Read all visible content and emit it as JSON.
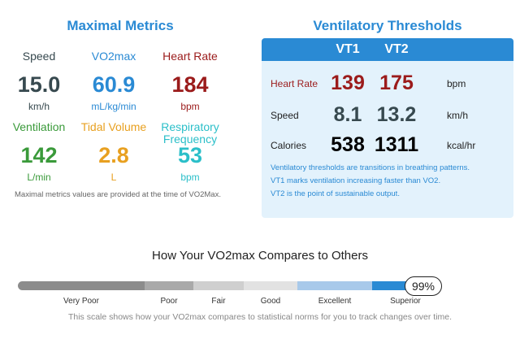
{
  "maximal_metrics": {
    "title": "Maximal Metrics",
    "metrics": [
      {
        "label": "Speed",
        "value": "15.0",
        "unit": "km/h"
      },
      {
        "label": "VO2max",
        "value": "60.9",
        "unit": "mL/kg/min"
      },
      {
        "label": "Heart Rate",
        "value": "184",
        "unit": "bpm"
      },
      {
        "label": "Ventilation",
        "value": "142",
        "unit": "L/min"
      },
      {
        "label": "Tidal Volume",
        "value": "2.8",
        "unit": "L"
      },
      {
        "label": "Respiratory Frequency",
        "value": "53",
        "unit": "bpm"
      }
    ],
    "note": "Maximal metrics values are provided at the time of VO2Max."
  },
  "ventilatory_thresholds": {
    "title": "Ventilatory Thresholds",
    "columns": [
      "VT1",
      "VT2"
    ],
    "rows": [
      {
        "label": "Heart Rate",
        "values": [
          "139",
          "175"
        ],
        "unit": "bpm"
      },
      {
        "label": "Speed",
        "values": [
          "8.1",
          "13.2"
        ],
        "unit": "km/h"
      },
      {
        "label": "Calories",
        "values": [
          "538",
          "1311"
        ],
        "unit": "kcal/hr"
      }
    ],
    "notes": [
      "Ventilatory thresholds are transitions in breathing patterns.",
      "VT1 marks ventilation increasing faster than VO2.",
      "VT2 is the point of sustainable output."
    ]
  },
  "comparison": {
    "title": "How Your VO2max Compares to Others",
    "levels": [
      "Very Poor",
      "Poor",
      "Fair",
      "Good",
      "Excellent",
      "Superior"
    ],
    "percentile": "99%",
    "note": "This scale shows how your VO2max compares to statistical norms for you to track changes over time."
  }
}
